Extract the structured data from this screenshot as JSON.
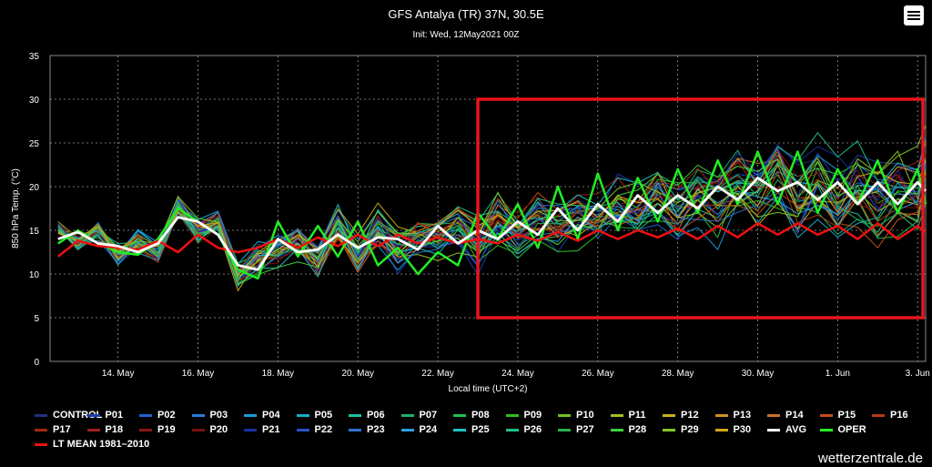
{
  "chart_data": {
    "type": "line",
    "title": "GFS Antalya (TR) 37N, 30.5E",
    "subtitle": "Init: Wed, 12May2021 00Z",
    "xlabel": "Local time (UTC+2)",
    "ylabel": "850 hPa Temp. (°C)",
    "ylim": [
      0,
      35
    ],
    "y_ticks": [
      "0",
      "5",
      "10",
      "15",
      "20",
      "25",
      "30",
      "35"
    ],
    "x_ticks": [
      "14. May",
      "16. May",
      "18. May",
      "20. May",
      "22. May",
      "24. May",
      "26. May",
      "28. May",
      "30. May",
      "1. Jun",
      "3. Jun"
    ],
    "grid": true,
    "legend_position": "bottom",
    "x_range_days": [
      12.3,
      34.2
    ],
    "highlight_box": {
      "color": "#e8161c",
      "x_from_day": 23.0,
      "x_to_day": 34.2,
      "y_from": 5,
      "y_to": 30
    },
    "avg_series": {
      "name": "AVG",
      "color": "#ffffff",
      "x_days": [
        12.5,
        13,
        13.5,
        14,
        14.5,
        15,
        15.5,
        16,
        16.5,
        17,
        17.5,
        18,
        18.5,
        19,
        19.5,
        20,
        20.5,
        21,
        21.5,
        22,
        22.5,
        23,
        23.5,
        24,
        24.5,
        25,
        25.5,
        26,
        26.5,
        27,
        27.5,
        28,
        28.5,
        29,
        29.5,
        30,
        30.5,
        31,
        31.5,
        32,
        32.5,
        33,
        33.5,
        34,
        34.2
      ],
      "values": [
        14,
        14.8,
        13.5,
        13.2,
        12.5,
        13.5,
        16.5,
        16,
        14.5,
        11,
        10.5,
        14,
        12.5,
        12.8,
        14.5,
        13,
        14.2,
        14,
        12.8,
        15.5,
        13.5,
        15,
        14,
        16,
        14.5,
        17.5,
        15,
        18,
        16,
        19,
        17,
        19,
        17.5,
        20,
        18.5,
        21,
        19.5,
        20.5,
        18.5,
        20.5,
        18,
        20.5,
        18,
        20.5,
        19.5
      ]
    },
    "oper_series": {
      "name": "OPER",
      "color": "#22ee22",
      "x_days": [
        12.5,
        13,
        13.5,
        14,
        14.5,
        15,
        15.5,
        16,
        16.5,
        17,
        17.5,
        18,
        18.5,
        19,
        19.5,
        20,
        20.5,
        21,
        21.5,
        22,
        22.5,
        23,
        23.5,
        24,
        24.5,
        25,
        25.5,
        26,
        26.5,
        27,
        27.5,
        28,
        28.5,
        29,
        29.5,
        30,
        30.5,
        31,
        31.5,
        32,
        32.5,
        33,
        33.5,
        34,
        34.2
      ],
      "values": [
        13.5,
        15,
        13.5,
        12.5,
        12.2,
        14,
        17.5,
        16,
        14.5,
        10.5,
        9.5,
        16,
        12,
        15.5,
        12,
        16,
        11,
        13,
        10,
        12.5,
        11,
        17,
        14,
        18,
        13,
        20,
        14,
        21.5,
        15,
        21,
        16,
        22,
        17,
        23,
        18,
        24,
        18,
        24,
        17,
        22,
        18,
        23,
        17,
        22,
        18
      ]
    },
    "ltmean_series": {
      "name": "LT MEAN 1981-2010",
      "color": "#ee1111",
      "x_days": [
        12.5,
        13,
        13.5,
        14,
        14.5,
        15,
        15.5,
        16,
        16.5,
        17,
        17.5,
        18,
        18.5,
        19,
        19.5,
        20,
        20.5,
        21,
        21.5,
        22,
        22.5,
        23,
        23.5,
        24,
        24.5,
        25,
        25.5,
        26,
        26.5,
        27,
        27.5,
        28,
        28.5,
        29,
        29.5,
        30,
        30.5,
        31,
        31.5,
        32,
        32.5,
        33,
        33.5,
        34,
        34.2
      ],
      "values": [
        12,
        13.8,
        13.2,
        13,
        12.8,
        13.8,
        12.5,
        14.5,
        13,
        12.5,
        13,
        14,
        13,
        14.2,
        13.2,
        14.5,
        13.2,
        14.5,
        13.5,
        14.2,
        13.5,
        14,
        13.5,
        14.5,
        13.8,
        14.8,
        13.8,
        15,
        14,
        15,
        14.2,
        15.2,
        14,
        15.5,
        14.2,
        15.8,
        14.5,
        15.8,
        14.5,
        15.5,
        14,
        15.8,
        14,
        15.5,
        14.8
      ]
    },
    "ensemble_members": [
      "CONTROL",
      "P01",
      "P02",
      "P03",
      "P04",
      "P05",
      "P06",
      "P07",
      "P08",
      "P09",
      "P10",
      "P11",
      "P12",
      "P13",
      "P14",
      "P15",
      "P16",
      "P17",
      "P18",
      "P19",
      "P20",
      "P21",
      "P22",
      "P23",
      "P24",
      "P25",
      "P26",
      "P27",
      "P28",
      "P29",
      "P30"
    ],
    "ensemble_colors": [
      "#203080",
      "#1d3fb0",
      "#2060d0",
      "#2580d8",
      "#1a9bd6",
      "#16b0c6",
      "#19c0a0",
      "#1fb070",
      "#20c050",
      "#30c020",
      "#70c020",
      "#a0c020",
      "#c8b018",
      "#d09020",
      "#d07020",
      "#c85018",
      "#b43a14",
      "#a02a10",
      "#9a2020",
      "#8a1515",
      "#7a1010",
      "#1a2fa0",
      "#2850c8",
      "#3070d0",
      "#2da0e0",
      "#20c0c0",
      "#20c080",
      "#28b050",
      "#40d040",
      "#80c828",
      "#d0a818"
    ],
    "legend": [
      {
        "label": "CONTROL",
        "color": "#203080"
      },
      {
        "label": "P01",
        "color": "#1d3fb0"
      },
      {
        "label": "P02",
        "color": "#2060d0"
      },
      {
        "label": "P03",
        "color": "#2580d8"
      },
      {
        "label": "P04",
        "color": "#1a9bd6"
      },
      {
        "label": "P05",
        "color": "#16b0c6"
      },
      {
        "label": "P06",
        "color": "#19c0a0"
      },
      {
        "label": "P07",
        "color": "#1fb070"
      },
      {
        "label": "P08",
        "color": "#20c050"
      },
      {
        "label": "P09",
        "color": "#30c020"
      },
      {
        "label": "P10",
        "color": "#70c020"
      },
      {
        "label": "P11",
        "color": "#a0c020"
      },
      {
        "label": "P12",
        "color": "#c8b018"
      },
      {
        "label": "P13",
        "color": "#d09020"
      },
      {
        "label": "P14",
        "color": "#d07020"
      },
      {
        "label": "P15",
        "color": "#c85018"
      },
      {
        "label": "P16",
        "color": "#b43a14"
      },
      {
        "label": "P17",
        "color": "#a02a10"
      },
      {
        "label": "P18",
        "color": "#9a2020"
      },
      {
        "label": "P19",
        "color": "#8a1515"
      },
      {
        "label": "P20",
        "color": "#7a1010"
      },
      {
        "label": "P21",
        "color": "#1a2fa0"
      },
      {
        "label": "P22",
        "color": "#2850c8"
      },
      {
        "label": "P23",
        "color": "#3070d0"
      },
      {
        "label": "P24",
        "color": "#2da0e0"
      },
      {
        "label": "P25",
        "color": "#20c0c0"
      },
      {
        "label": "P26",
        "color": "#20c080"
      },
      {
        "label": "P27",
        "color": "#28b050"
      },
      {
        "label": "P28",
        "color": "#40d040"
      },
      {
        "label": "P29",
        "color": "#80c828"
      },
      {
        "label": "P30",
        "color": "#d0a818"
      },
      {
        "label": "AVG",
        "color": "#ffffff"
      },
      {
        "label": "OPER",
        "color": "#22ee22"
      },
      {
        "label": "LT MEAN 1981–2010",
        "color": "#ee1111"
      }
    ]
  },
  "credit": "wetterzentrale.de",
  "menu_icon": "hamburger-menu-icon"
}
